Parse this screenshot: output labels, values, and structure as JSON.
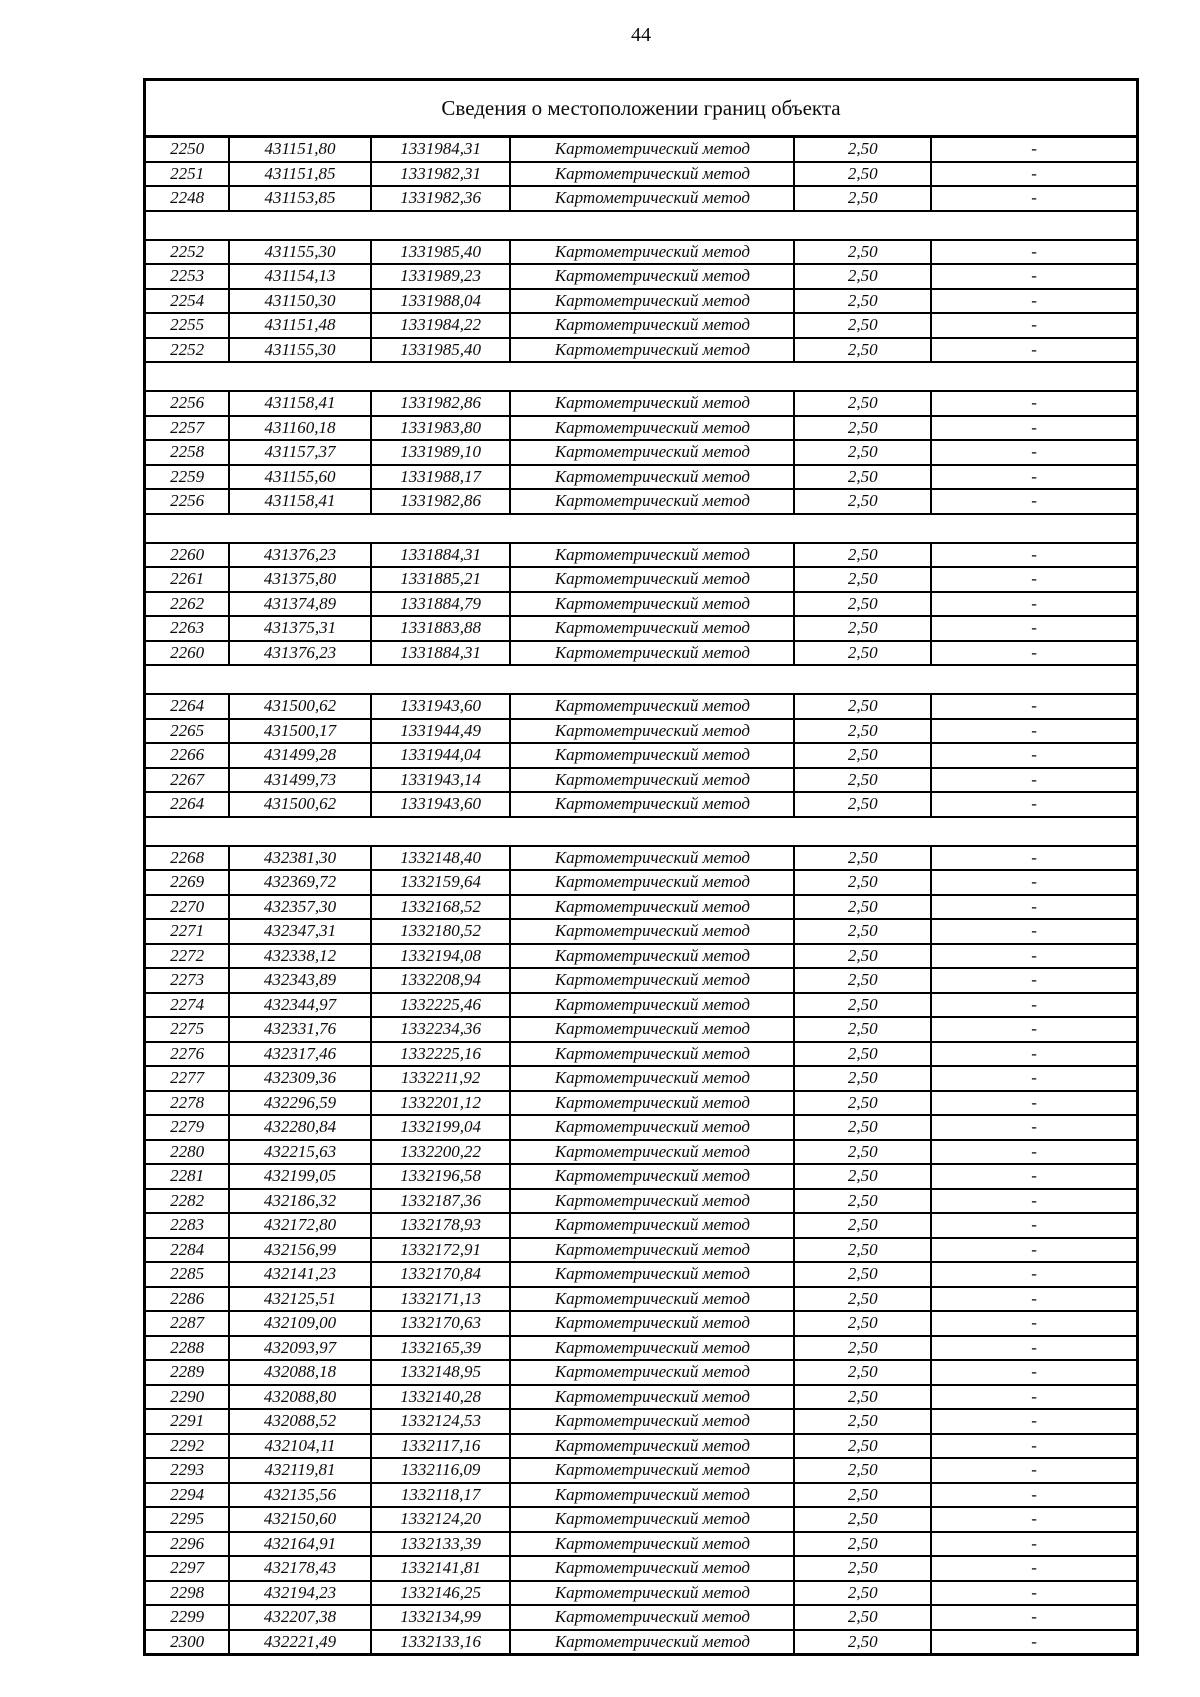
{
  "page": {
    "number": "44"
  },
  "table": {
    "title": "Сведения о местоположении границ объекта",
    "method": "Картометрический метод",
    "precision": "2,50",
    "dash": "-",
    "groups": [
      [
        [
          "2250",
          "431151,80",
          "1331984,31"
        ],
        [
          "2251",
          "431151,85",
          "1331982,31"
        ],
        [
          "2248",
          "431153,85",
          "1331982,36"
        ]
      ],
      [
        [
          "2252",
          "431155,30",
          "1331985,40"
        ],
        [
          "2253",
          "431154,13",
          "1331989,23"
        ],
        [
          "2254",
          "431150,30",
          "1331988,04"
        ],
        [
          "2255",
          "431151,48",
          "1331984,22"
        ],
        [
          "2252",
          "431155,30",
          "1331985,40"
        ]
      ],
      [
        [
          "2256",
          "431158,41",
          "1331982,86"
        ],
        [
          "2257",
          "431160,18",
          "1331983,80"
        ],
        [
          "2258",
          "431157,37",
          "1331989,10"
        ],
        [
          "2259",
          "431155,60",
          "1331988,17"
        ],
        [
          "2256",
          "431158,41",
          "1331982,86"
        ]
      ],
      [
        [
          "2260",
          "431376,23",
          "1331884,31"
        ],
        [
          "2261",
          "431375,80",
          "1331885,21"
        ],
        [
          "2262",
          "431374,89",
          "1331884,79"
        ],
        [
          "2263",
          "431375,31",
          "1331883,88"
        ],
        [
          "2260",
          "431376,23",
          "1331884,31"
        ]
      ],
      [
        [
          "2264",
          "431500,62",
          "1331943,60"
        ],
        [
          "2265",
          "431500,17",
          "1331944,49"
        ],
        [
          "2266",
          "431499,28",
          "1331944,04"
        ],
        [
          "2267",
          "431499,73",
          "1331943,14"
        ],
        [
          "2264",
          "431500,62",
          "1331943,60"
        ]
      ],
      [
        [
          "2268",
          "432381,30",
          "1332148,40"
        ],
        [
          "2269",
          "432369,72",
          "1332159,64"
        ],
        [
          "2270",
          "432357,30",
          "1332168,52"
        ],
        [
          "2271",
          "432347,31",
          "1332180,52"
        ],
        [
          "2272",
          "432338,12",
          "1332194,08"
        ],
        [
          "2273",
          "432343,89",
          "1332208,94"
        ],
        [
          "2274",
          "432344,97",
          "1332225,46"
        ],
        [
          "2275",
          "432331,76",
          "1332234,36"
        ],
        [
          "2276",
          "432317,46",
          "1332225,16"
        ],
        [
          "2277",
          "432309,36",
          "1332211,92"
        ],
        [
          "2278",
          "432296,59",
          "1332201,12"
        ],
        [
          "2279",
          "432280,84",
          "1332199,04"
        ],
        [
          "2280",
          "432215,63",
          "1332200,22"
        ],
        [
          "2281",
          "432199,05",
          "1332196,58"
        ],
        [
          "2282",
          "432186,32",
          "1332187,36"
        ],
        [
          "2283",
          "432172,80",
          "1332178,93"
        ],
        [
          "2284",
          "432156,99",
          "1332172,91"
        ],
        [
          "2285",
          "432141,23",
          "1332170,84"
        ],
        [
          "2286",
          "432125,51",
          "1332171,13"
        ],
        [
          "2287",
          "432109,00",
          "1332170,63"
        ],
        [
          "2288",
          "432093,97",
          "1332165,39"
        ],
        [
          "2289",
          "432088,18",
          "1332148,95"
        ],
        [
          "2290",
          "432088,80",
          "1332140,28"
        ],
        [
          "2291",
          "432088,52",
          "1332124,53"
        ],
        [
          "2292",
          "432104,11",
          "1332117,16"
        ],
        [
          "2293",
          "432119,81",
          "1332116,09"
        ],
        [
          "2294",
          "432135,56",
          "1332118,17"
        ],
        [
          "2295",
          "432150,60",
          "1332124,20"
        ],
        [
          "2296",
          "432164,91",
          "1332133,39"
        ],
        [
          "2297",
          "432178,43",
          "1332141,81"
        ],
        [
          "2298",
          "432194,23",
          "1332146,25"
        ],
        [
          "2299",
          "432207,38",
          "1332134,99"
        ],
        [
          "2300",
          "432221,49",
          "1332133,16"
        ]
      ]
    ]
  }
}
